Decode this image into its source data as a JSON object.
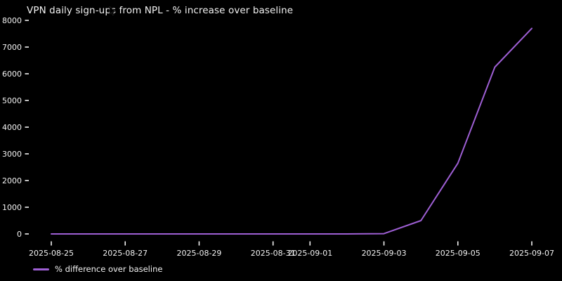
{
  "window": {
    "background": "#000000",
    "text_color": "#f2f2f2"
  },
  "chart_data": {
    "type": "line",
    "title": "VPN daily sign-ups from NPL - % increase over baseline",
    "xlabel": "",
    "ylabel": "",
    "x": [
      "2025-08-25",
      "2025-08-26",
      "2025-08-27",
      "2025-08-28",
      "2025-08-29",
      "2025-08-30",
      "2025-08-31",
      "2025-09-01",
      "2025-09-02",
      "2025-09-03",
      "2025-09-04",
      "2025-09-05",
      "2025-09-06",
      "2025-09-07"
    ],
    "series": [
      {
        "name": "% difference over baseline",
        "color": "#9e5fd4",
        "values": [
          0,
          0,
          0,
          0,
          0,
          0,
          0,
          0,
          0,
          10,
          500,
          2650,
          6250,
          7700
        ]
      }
    ],
    "ylim": [
      0,
      8000
    ],
    "yticks": [
      0,
      1000,
      2000,
      3000,
      4000,
      5000,
      6000,
      7000,
      8000
    ],
    "xticks": [
      {
        "label": "2025-08-25",
        "day": 0
      },
      {
        "label": "2025-08-27",
        "day": 2
      },
      {
        "label": "2025-08-29",
        "day": 4
      },
      {
        "label": "2025-08-31",
        "day": 6
      },
      {
        "label": "2025-09-01",
        "day": 7
      },
      {
        "label": "2025-09-03",
        "day": 9
      },
      {
        "label": "2025-09-05",
        "day": 11
      },
      {
        "label": "2025-09-07",
        "day": 13
      }
    ],
    "grid": false,
    "legend_position": "lower-left",
    "plot_background": "#000000",
    "tick_color": "#f2f2f2"
  },
  "legend": {
    "label": "% difference over baseline",
    "swatch_color": "#9e5fd4"
  }
}
